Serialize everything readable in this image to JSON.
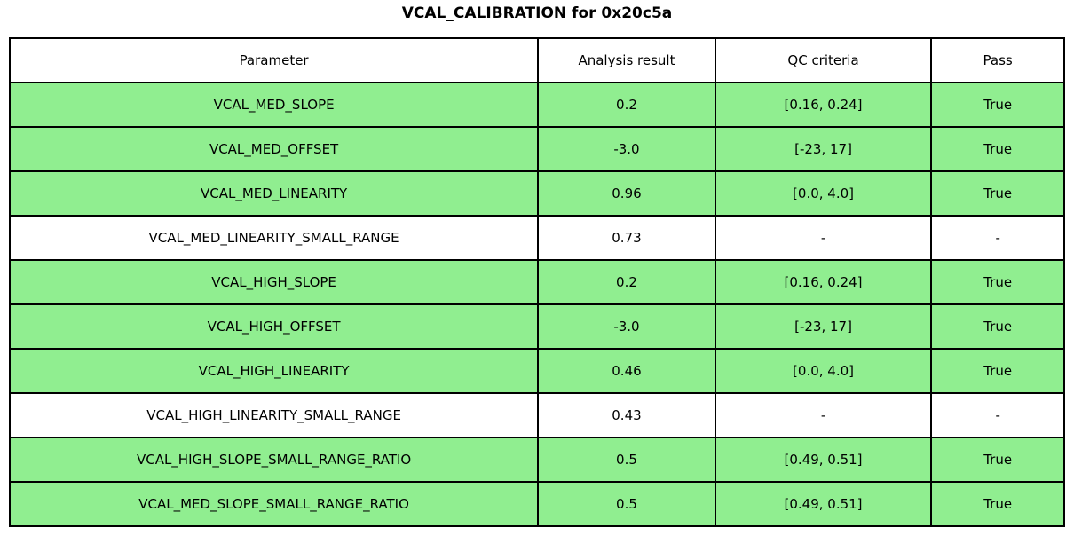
{
  "title": "VCAL_CALIBRATION for 0x20c5a",
  "colors": {
    "pass_green": "#90ee90",
    "border": "#000000",
    "background": "#ffffff"
  },
  "chart_data": {
    "type": "table",
    "title": "VCAL_CALIBRATION for 0x20c5a",
    "columns": [
      "Parameter",
      "Analysis result",
      "QC criteria",
      "Pass"
    ],
    "rows": [
      [
        "VCAL_MED_SLOPE",
        "0.2",
        "[0.16, 0.24]",
        "True"
      ],
      [
        "VCAL_MED_OFFSET",
        "-3.0",
        "[-23, 17]",
        "True"
      ],
      [
        "VCAL_MED_LINEARITY",
        "0.96",
        "[0.0, 4.0]",
        "True"
      ],
      [
        "VCAL_MED_LINEARITY_SMALL_RANGE",
        "0.73",
        "-",
        "-"
      ],
      [
        "VCAL_HIGH_SLOPE",
        "0.2",
        "[0.16, 0.24]",
        "True"
      ],
      [
        "VCAL_HIGH_OFFSET",
        "-3.0",
        "[-23, 17]",
        "True"
      ],
      [
        "VCAL_HIGH_LINEARITY",
        "0.46",
        "[0.0, 4.0]",
        "True"
      ],
      [
        "VCAL_HIGH_LINEARITY_SMALL_RANGE",
        "0.43",
        "-",
        "-"
      ],
      [
        "VCAL_HIGH_SLOPE_SMALL_RANGE_RATIO",
        "0.5",
        "[0.49, 0.51]",
        "True"
      ],
      [
        "VCAL_MED_SLOPE_SMALL_RANGE_RATIO",
        "0.5",
        "[0.49, 0.51]",
        "True"
      ]
    ],
    "row_highlight": [
      true,
      true,
      true,
      false,
      true,
      true,
      true,
      false,
      true,
      true
    ],
    "highlight_color": "#90ee90",
    "layout": "header row white; passing rows filled light green; failing/NA rows white; all cells centered; black grid lines"
  }
}
